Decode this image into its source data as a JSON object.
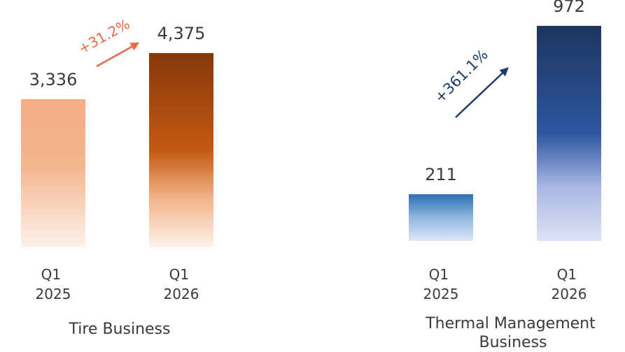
{
  "chart_data": [
    {
      "type": "bar",
      "title": "Tire Business",
      "categories": [
        "Q1\n2025",
        "Q1\n2026"
      ],
      "values": [
        3336,
        4375
      ],
      "value_labels": [
        "3,336",
        "4,375"
      ],
      "growth_label": "+31.2%",
      "accent_color": "#e8694a",
      "bar_colors": [
        "#f3b48a",
        "#8b3a0a"
      ]
    },
    {
      "type": "bar",
      "title": "Thermal Management\nBusiness",
      "categories": [
        "Q1\n2025",
        "Q1\n2026"
      ],
      "values": [
        211,
        972
      ],
      "value_labels": [
        "211",
        "972"
      ],
      "growth_label": "+361.1%",
      "accent_color": "#1f3a6b",
      "bar_colors": [
        "#2f6fb5",
        "#1e3a6e"
      ]
    }
  ]
}
